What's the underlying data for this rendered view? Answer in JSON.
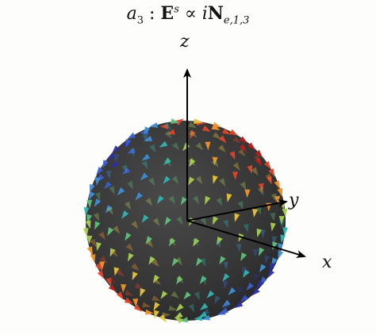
{
  "title": {
    "a": "a",
    "a_sub": "3",
    "colon": " : ",
    "E": "E",
    "E_sup": "s",
    "prop": " ∝ ",
    "i": "i",
    "N": "N",
    "N_sub": "e,1,3"
  },
  "axes": {
    "x": "x",
    "y": "y",
    "z": "z"
  },
  "colors": {
    "sphere": "#3b3b3b",
    "axis": "#000000",
    "palette": [
      "#2b2fa8",
      "#3a5fd0",
      "#3d8fd6",
      "#32b3b0",
      "#5fc07a",
      "#a8cf52",
      "#e6c43a",
      "#f0932b",
      "#e0452a",
      "#b51f1f"
    ]
  }
}
